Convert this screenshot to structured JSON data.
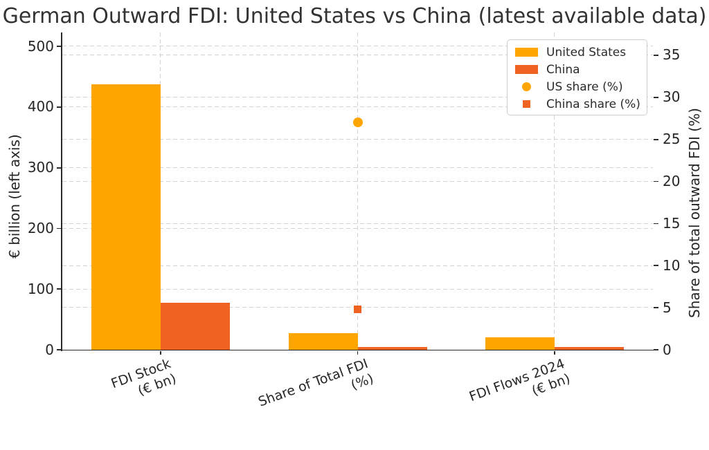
{
  "chart_data": {
    "type": "bar",
    "title": "German Outward FDI: United States vs China (latest available data)",
    "categories": [
      {
        "line1": "FDI Stock",
        "line2": "(€ bn)"
      },
      {
        "line1": "Share of Total FDI",
        "line2": "(%)"
      },
      {
        "line1": "FDI Flows 2024",
        "line2": "(€ bn)"
      }
    ],
    "bar_series": [
      {
        "name": "United States",
        "color": "#FFA500",
        "axis": "left",
        "values": [
          438,
          27,
          20
        ]
      },
      {
        "name": "China",
        "color": "#EE6322",
        "axis": "left",
        "values": [
          78,
          4.8,
          5
        ]
      }
    ],
    "marker_series": [
      {
        "name": "US share (%)",
        "shape": "circle",
        "color": "#FFA500",
        "axis": "right",
        "points": [
          {
            "category_index": 1,
            "value": 27
          }
        ]
      },
      {
        "name": "China share (%)",
        "shape": "square",
        "color": "#EE6322",
        "axis": "right",
        "points": [
          {
            "category_index": 1,
            "value": 4.8
          }
        ]
      }
    ],
    "axes": {
      "left": {
        "label": "€ billion (left axis)",
        "ticks": [
          0,
          100,
          200,
          300,
          400,
          500
        ],
        "range": [
          0,
          523
        ]
      },
      "right": {
        "label": "Share of total outward FDI (%)",
        "ticks": [
          0,
          5,
          10,
          15,
          20,
          25,
          30,
          35
        ],
        "range": [
          0,
          37.7
        ]
      }
    },
    "grid": true,
    "legend": {
      "position": "upper right",
      "entries": [
        {
          "label": "United States",
          "swatch": "bar",
          "color": "#FFA500"
        },
        {
          "label": "China",
          "swatch": "bar",
          "color": "#EE6322"
        },
        {
          "label": "US share (%)",
          "swatch": "circle",
          "color": "#FFA500"
        },
        {
          "label": "China share (%)",
          "swatch": "square",
          "color": "#EE6322"
        }
      ]
    },
    "colors": {
      "grid": "#d2d2d2",
      "spine": "#2b2b2b",
      "text": "#262626",
      "title": "#333333"
    }
  }
}
